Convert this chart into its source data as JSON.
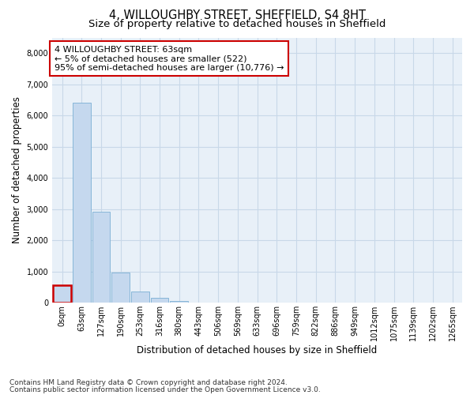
{
  "title_line1": "4, WILLOUGHBY STREET, SHEFFIELD, S4 8HT",
  "title_line2": "Size of property relative to detached houses in Sheffield",
  "xlabel": "Distribution of detached houses by size in Sheffield",
  "ylabel": "Number of detached properties",
  "bar_labels": [
    "0sqm",
    "63sqm",
    "127sqm",
    "190sqm",
    "253sqm",
    "316sqm",
    "380sqm",
    "443sqm",
    "506sqm",
    "569sqm",
    "633sqm",
    "696sqm",
    "759sqm",
    "822sqm",
    "886sqm",
    "949sqm",
    "1012sqm",
    "1075sqm",
    "1139sqm",
    "1202sqm",
    "1265sqm"
  ],
  "bar_values": [
    550,
    6420,
    2920,
    970,
    370,
    145,
    65,
    10,
    0,
    0,
    0,
    0,
    0,
    0,
    0,
    0,
    0,
    0,
    0,
    0,
    0
  ],
  "bar_color": "#c5d8ee",
  "bar_edge_color": "#7bafd4",
  "highlight_bar_index": 0,
  "highlight_bar_edge_color": "#cc0000",
  "ylim": [
    0,
    8500
  ],
  "yticks": [
    0,
    1000,
    2000,
    3000,
    4000,
    5000,
    6000,
    7000,
    8000
  ],
  "annotation_text": "4 WILLOUGHBY STREET: 63sqm\n← 5% of detached houses are smaller (522)\n95% of semi-detached houses are larger (10,776) →",
  "annotation_box_facecolor": "#ffffff",
  "annotation_box_edgecolor": "#cc0000",
  "grid_color": "#c8d8e8",
  "background_color": "#e8f0f8",
  "footnote1": "Contains HM Land Registry data © Crown copyright and database right 2024.",
  "footnote2": "Contains public sector information licensed under the Open Government Licence v3.0.",
  "title_fontsize": 10.5,
  "subtitle_fontsize": 9.5,
  "tick_fontsize": 7,
  "ylabel_fontsize": 8.5,
  "xlabel_fontsize": 8.5,
  "footnote_fontsize": 6.5,
  "annot_fontsize": 8
}
